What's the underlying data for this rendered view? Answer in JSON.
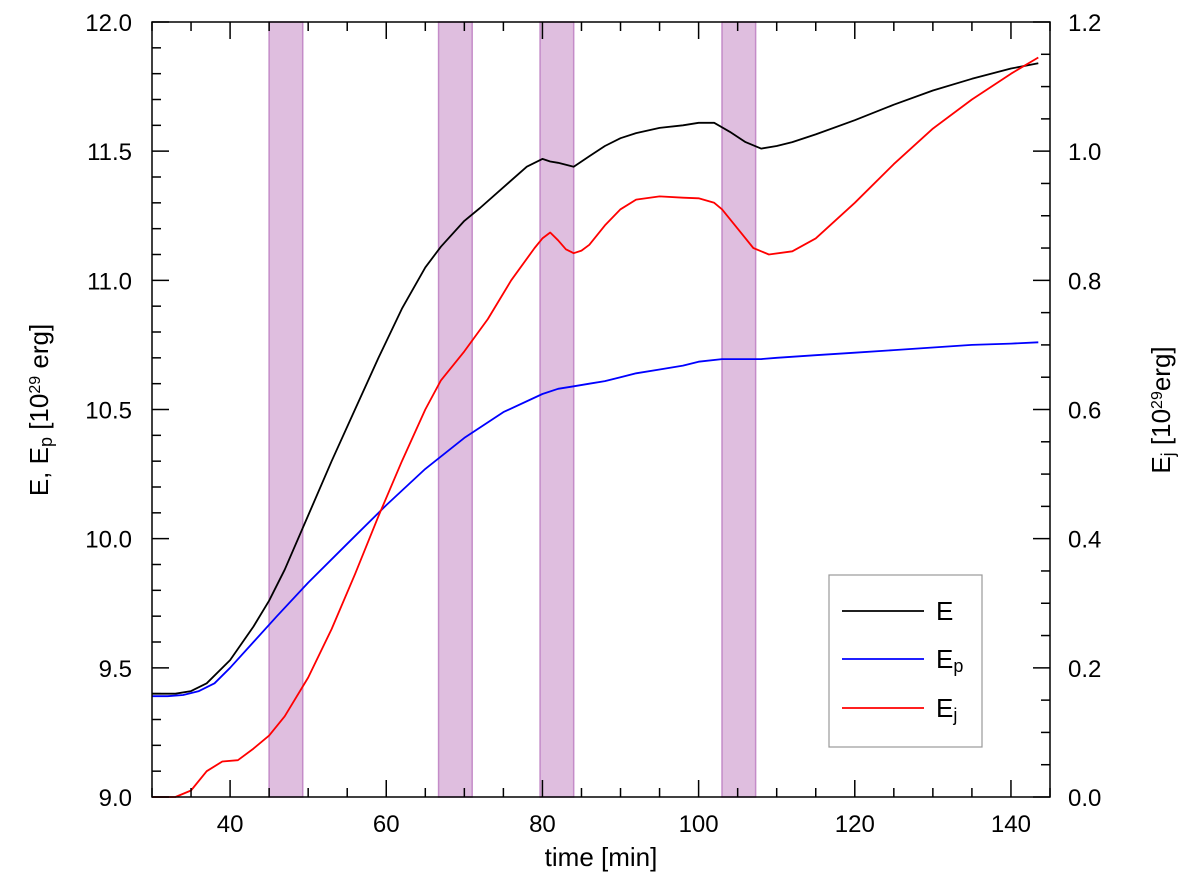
{
  "chart_data": {
    "type": "line",
    "xlabel": "time [min]",
    "ylabel_left": {
      "main": "E, E",
      "sub": "p",
      "mid": " [10",
      "sup": "29",
      "end": " erg]"
    },
    "ylabel_right": {
      "main": "E",
      "sub": "j",
      "mid": " [10",
      "sup": "29",
      "end": "erg]"
    },
    "xlim": [
      30,
      145
    ],
    "ylim_left": [
      9.0,
      12.0
    ],
    "ylim_right": [
      0.0,
      1.2
    ],
    "x_ticks": [
      40,
      60,
      80,
      100,
      120,
      140
    ],
    "x_tick_labels": [
      "40",
      "60",
      "80",
      "100",
      "120",
      "140"
    ],
    "y_left_ticks": [
      9.0,
      9.5,
      10.0,
      10.5,
      11.0,
      11.5,
      12.0
    ],
    "y_left_tick_labels": [
      "9.0",
      "9.5",
      "10.0",
      "10.5",
      "11.0",
      "11.5",
      "12.0"
    ],
    "y_right_ticks": [
      0.0,
      0.2,
      0.4,
      0.6,
      0.8,
      1.0,
      1.2
    ],
    "y_right_tick_labels": [
      "0.0",
      "0.2",
      "0.4",
      "0.6",
      "0.8",
      "1.0",
      "1.2"
    ],
    "bands": [
      [
        45,
        49.3
      ],
      [
        66.7,
        71
      ],
      [
        79.7,
        84
      ],
      [
        103,
        107.3
      ]
    ],
    "legend": [
      {
        "name": "E",
        "sub": "",
        "color": "#000000"
      },
      {
        "name": "E",
        "sub": "p",
        "color": "#0000ff"
      },
      {
        "name": "E",
        "sub": "j",
        "color": "#ff0000"
      }
    ],
    "series": [
      {
        "name": "E",
        "axis": "left",
        "color": "#000000",
        "x": [
          30,
          33,
          35,
          37,
          40,
          43,
          45,
          47,
          50,
          53,
          56,
          59,
          62,
          65,
          67,
          70,
          72,
          75,
          78,
          80,
          81,
          82,
          84,
          86,
          88,
          90,
          92,
          95,
          98,
          100,
          102,
          104,
          106,
          108,
          110,
          112,
          115,
          120,
          125,
          130,
          135,
          140,
          143.5
        ],
        "y": [
          9.4,
          9.4,
          9.41,
          9.44,
          9.53,
          9.66,
          9.76,
          9.88,
          10.09,
          10.3,
          10.5,
          10.7,
          10.89,
          11.05,
          11.13,
          11.23,
          11.28,
          11.36,
          11.44,
          11.47,
          11.46,
          11.455,
          11.44,
          11.48,
          11.52,
          11.55,
          11.57,
          11.59,
          11.6,
          11.61,
          11.61,
          11.575,
          11.535,
          11.51,
          11.52,
          11.535,
          11.565,
          11.62,
          11.68,
          11.735,
          11.78,
          11.82,
          11.84
        ]
      },
      {
        "name": "E_p",
        "axis": "left",
        "color": "#0000ff",
        "x": [
          30,
          32,
          34,
          36,
          38,
          40,
          43,
          46,
          50,
          55,
          60,
          65,
          70,
          75,
          80,
          82,
          84,
          86,
          88,
          90,
          92,
          95,
          98,
          100,
          103,
          106,
          108,
          110,
          115,
          120,
          125,
          130,
          135,
          140,
          143.5
        ],
        "y": [
          9.39,
          9.39,
          9.395,
          9.41,
          9.44,
          9.5,
          9.6,
          9.7,
          9.83,
          9.98,
          10.13,
          10.27,
          10.39,
          10.49,
          10.56,
          10.58,
          10.59,
          10.6,
          10.61,
          10.625,
          10.64,
          10.655,
          10.67,
          10.685,
          10.695,
          10.695,
          10.695,
          10.7,
          10.71,
          10.72,
          10.73,
          10.74,
          10.75,
          10.755,
          10.76
        ]
      },
      {
        "name": "E_j",
        "axis": "right",
        "color": "#ff0000",
        "x": [
          30,
          33,
          35,
          37,
          39,
          41,
          43,
          45,
          47,
          50,
          53,
          56,
          59,
          62,
          65,
          67,
          70,
          73,
          76,
          79,
          80,
          81,
          82,
          83,
          84,
          85,
          86,
          88,
          90,
          92,
          95,
          98,
          100,
          102,
          103,
          105,
          107,
          109,
          112,
          115,
          120,
          125,
          130,
          135,
          140,
          143.5
        ],
        "y": [
          0.0,
          0.0,
          0.01,
          0.04,
          0.055,
          0.057,
          0.075,
          0.095,
          0.125,
          0.185,
          0.26,
          0.345,
          0.435,
          0.52,
          0.6,
          0.645,
          0.69,
          0.74,
          0.8,
          0.85,
          0.865,
          0.874,
          0.862,
          0.848,
          0.842,
          0.846,
          0.855,
          0.885,
          0.91,
          0.925,
          0.93,
          0.928,
          0.927,
          0.92,
          0.91,
          0.88,
          0.85,
          0.84,
          0.845,
          0.865,
          0.92,
          0.98,
          1.035,
          1.08,
          1.12,
          1.145
        ]
      }
    ]
  }
}
